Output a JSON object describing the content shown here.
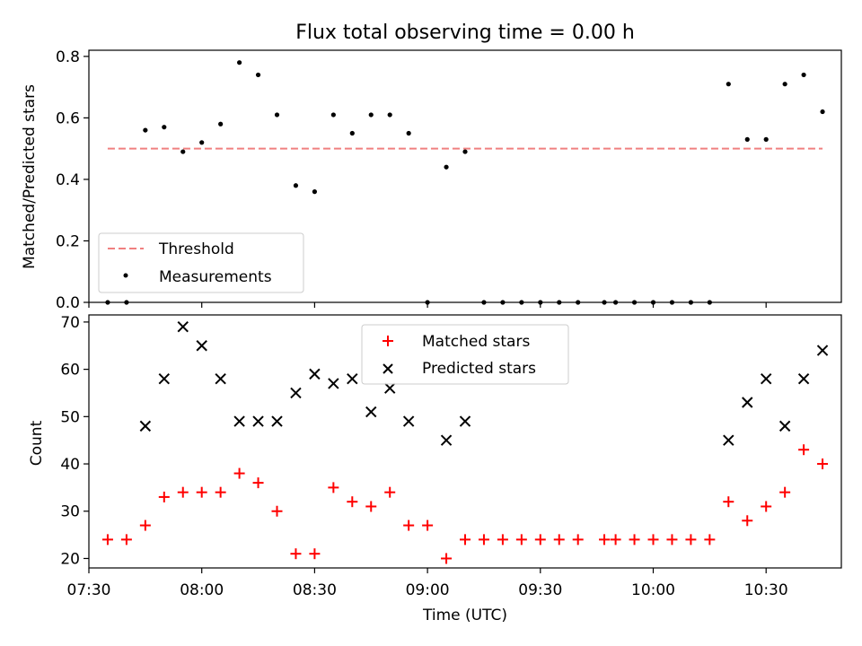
{
  "title": "Flux total observing time = 0.00 h",
  "colors": {
    "threshold": "#f08080",
    "measurement": "#000000",
    "matched": "#ff0000",
    "predicted": "#000000"
  },
  "chart_data": [
    {
      "type": "scatter",
      "ylabel": "Matched/Predicted stars",
      "ylim": [
        0,
        0.82
      ],
      "yticks": [
        "0.0",
        "0.2",
        "0.4",
        "0.6",
        "0.8"
      ],
      "legend": {
        "placement": "lower-left",
        "entries": [
          "Threshold",
          "Measurements"
        ]
      },
      "threshold": {
        "name": "Threshold",
        "value": 0.5,
        "x_start": "07:35",
        "x_end": "10:45"
      },
      "series": [
        {
          "name": "Measurements",
          "x": [
            "07:35",
            "07:40",
            "07:45",
            "07:50",
            "07:55",
            "08:00",
            "08:05",
            "08:10",
            "08:15",
            "08:20",
            "08:25",
            "08:30",
            "08:35",
            "08:40",
            "08:45",
            "08:50",
            "08:55",
            "09:00",
            "09:05",
            "09:10",
            "09:15",
            "09:20",
            "09:25",
            "09:30",
            "09:35",
            "09:40",
            "09:47",
            "09:50",
            "09:55",
            "10:00",
            "10:05",
            "10:10",
            "10:15",
            "10:20",
            "10:25",
            "10:30",
            "10:35",
            "10:40",
            "10:45"
          ],
          "y": [
            0,
            0,
            0.56,
            0.57,
            0.49,
            0.52,
            0.58,
            0.78,
            0.74,
            0.61,
            0.38,
            0.36,
            0.61,
            0.55,
            0.61,
            0.61,
            0.55,
            0,
            0.44,
            0.49,
            0,
            0,
            0,
            0,
            0,
            0,
            0,
            0,
            0,
            0,
            0,
            0,
            0,
            0.71,
            0.53,
            0.53,
            0.71,
            0.74,
            0.62
          ]
        }
      ]
    },
    {
      "type": "scatter",
      "ylabel": "Count",
      "xlabel": "Time (UTC)",
      "ylim": [
        18,
        71.5
      ],
      "yticks": [
        "20",
        "30",
        "40",
        "50",
        "60",
        "70"
      ],
      "xlim": [
        "07:30",
        "10:50"
      ],
      "xticks": [
        "07:30",
        "08:00",
        "08:30",
        "09:00",
        "09:30",
        "10:00",
        "10:30"
      ],
      "legend": {
        "placement": "upper-center",
        "entries": [
          "Matched stars",
          "Predicted stars"
        ]
      },
      "series": [
        {
          "name": "Matched stars",
          "x": [
            "07:35",
            "07:40",
            "07:45",
            "07:50",
            "07:55",
            "08:00",
            "08:05",
            "08:10",
            "08:15",
            "08:20",
            "08:25",
            "08:30",
            "08:35",
            "08:40",
            "08:45",
            "08:50",
            "08:55",
            "09:00",
            "09:05",
            "09:10",
            "09:15",
            "09:20",
            "09:25",
            "09:30",
            "09:35",
            "09:40",
            "09:47",
            "09:50",
            "09:55",
            "10:00",
            "10:05",
            "10:10",
            "10:15",
            "10:20",
            "10:25",
            "10:30",
            "10:35",
            "10:40",
            "10:45"
          ],
          "y": [
            24,
            24,
            27,
            33,
            34,
            34,
            34,
            38,
            36,
            30,
            21,
            21,
            35,
            32,
            31,
            34,
            27,
            27,
            20,
            24,
            24,
            24,
            24,
            24,
            24,
            24,
            24,
            24,
            24,
            24,
            24,
            24,
            24,
            32,
            28,
            31,
            34,
            43,
            40
          ]
        },
        {
          "name": "Predicted stars",
          "x": [
            "07:45",
            "07:50",
            "07:55",
            "08:00",
            "08:05",
            "08:10",
            "08:15",
            "08:20",
            "08:25",
            "08:30",
            "08:35",
            "08:40",
            "08:45",
            "08:50",
            "08:55",
            "09:05",
            "09:10",
            "10:20",
            "10:25",
            "10:30",
            "10:35",
            "10:40",
            "10:45"
          ],
          "y": [
            48,
            58,
            69,
            65,
            58,
            49,
            49,
            49,
            55,
            59,
            57,
            58,
            51,
            56,
            49,
            45,
            49,
            45,
            53,
            58,
            48,
            58,
            64
          ]
        }
      ]
    }
  ]
}
